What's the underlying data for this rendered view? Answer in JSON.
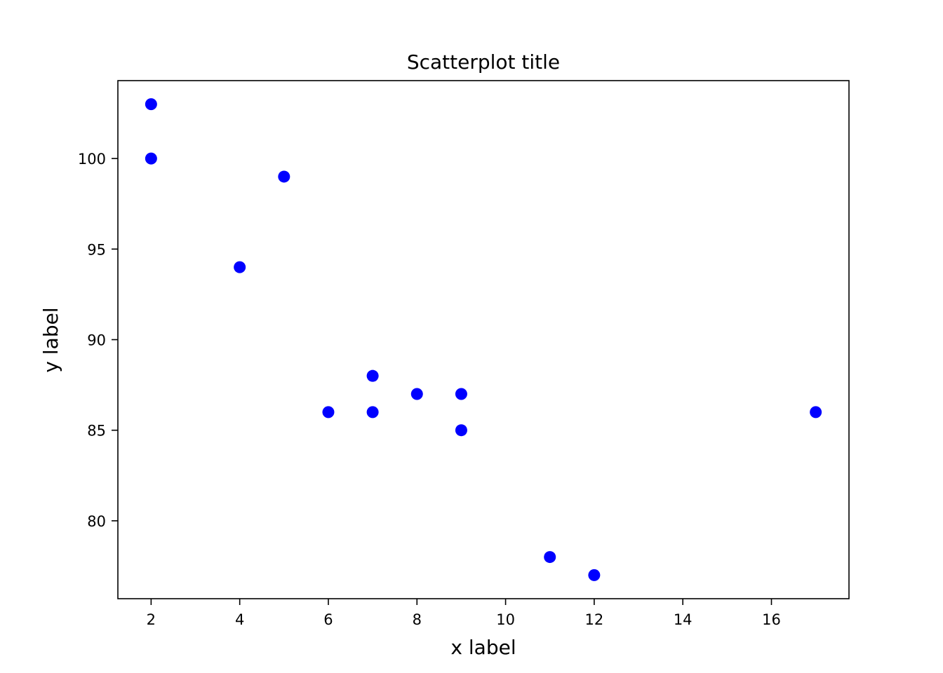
{
  "chart_data": {
    "type": "scatter",
    "title": "Scatterplot title",
    "xlabel": "x label",
    "ylabel": "y label",
    "xlim": [
      1.25,
      17.75
    ],
    "ylim": [
      75.7,
      104.3
    ],
    "xticks": [
      2,
      4,
      6,
      8,
      10,
      12,
      14,
      16
    ],
    "yticks": [
      80,
      85,
      90,
      95,
      100
    ],
    "grid": false,
    "legend": "none",
    "marker_color": "#0000ff",
    "points": [
      {
        "x": 2,
        "y": 103
      },
      {
        "x": 2,
        "y": 100
      },
      {
        "x": 5,
        "y": 99
      },
      {
        "x": 4,
        "y": 94
      },
      {
        "x": 7,
        "y": 88
      },
      {
        "x": 8,
        "y": 87
      },
      {
        "x": 9,
        "y": 87
      },
      {
        "x": 6,
        "y": 86
      },
      {
        "x": 7,
        "y": 86
      },
      {
        "x": 17,
        "y": 86
      },
      {
        "x": 9,
        "y": 85
      },
      {
        "x": 11,
        "y": 78
      },
      {
        "x": 12,
        "y": 77
      }
    ]
  }
}
